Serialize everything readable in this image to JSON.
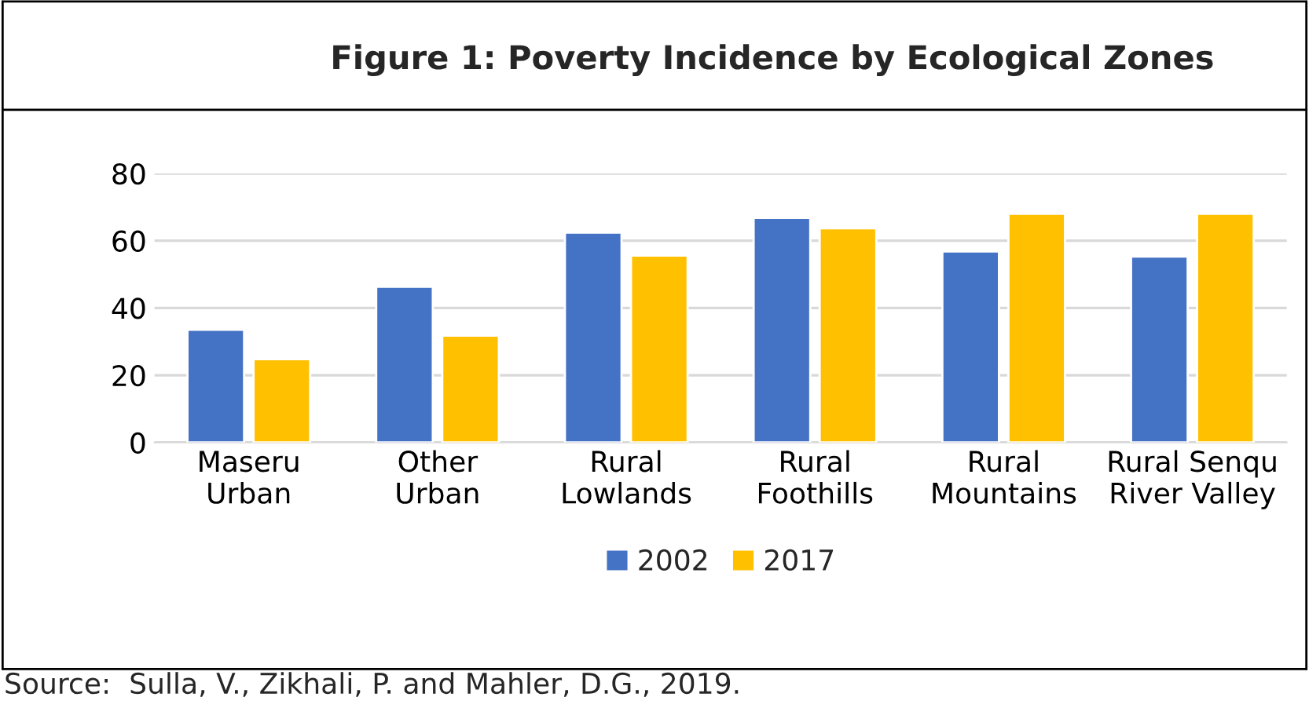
{
  "chart_data": {
    "type": "bar",
    "title": "Figure 1: Poverty Incidence by Ecological Zones",
    "categories": [
      "Maseru\nUrban",
      "Other\nUrban",
      "Rural\nLowlands",
      "Rural\nFoothills",
      "Rural\nMountains",
      "Rural Senqu\nRiver Valley"
    ],
    "series": [
      {
        "name": "2002",
        "color": "#4472c4",
        "values": [
          33.5,
          46.3,
          62.4,
          66.8,
          56.8,
          55.3
        ]
      },
      {
        "name": "2017",
        "color": "#ffc000",
        "values": [
          24.8,
          31.8,
          55.6,
          63.7,
          68.0,
          68.0
        ]
      }
    ],
    "ylim": [
      0,
      80
    ],
    "yticks": [
      0,
      20,
      40,
      60,
      80
    ],
    "grid": "y",
    "legend": "bottom",
    "annotations": [
      "Source:  Sulla, V., Zikhali, P. and Mahler, D.G., 2019."
    ]
  }
}
